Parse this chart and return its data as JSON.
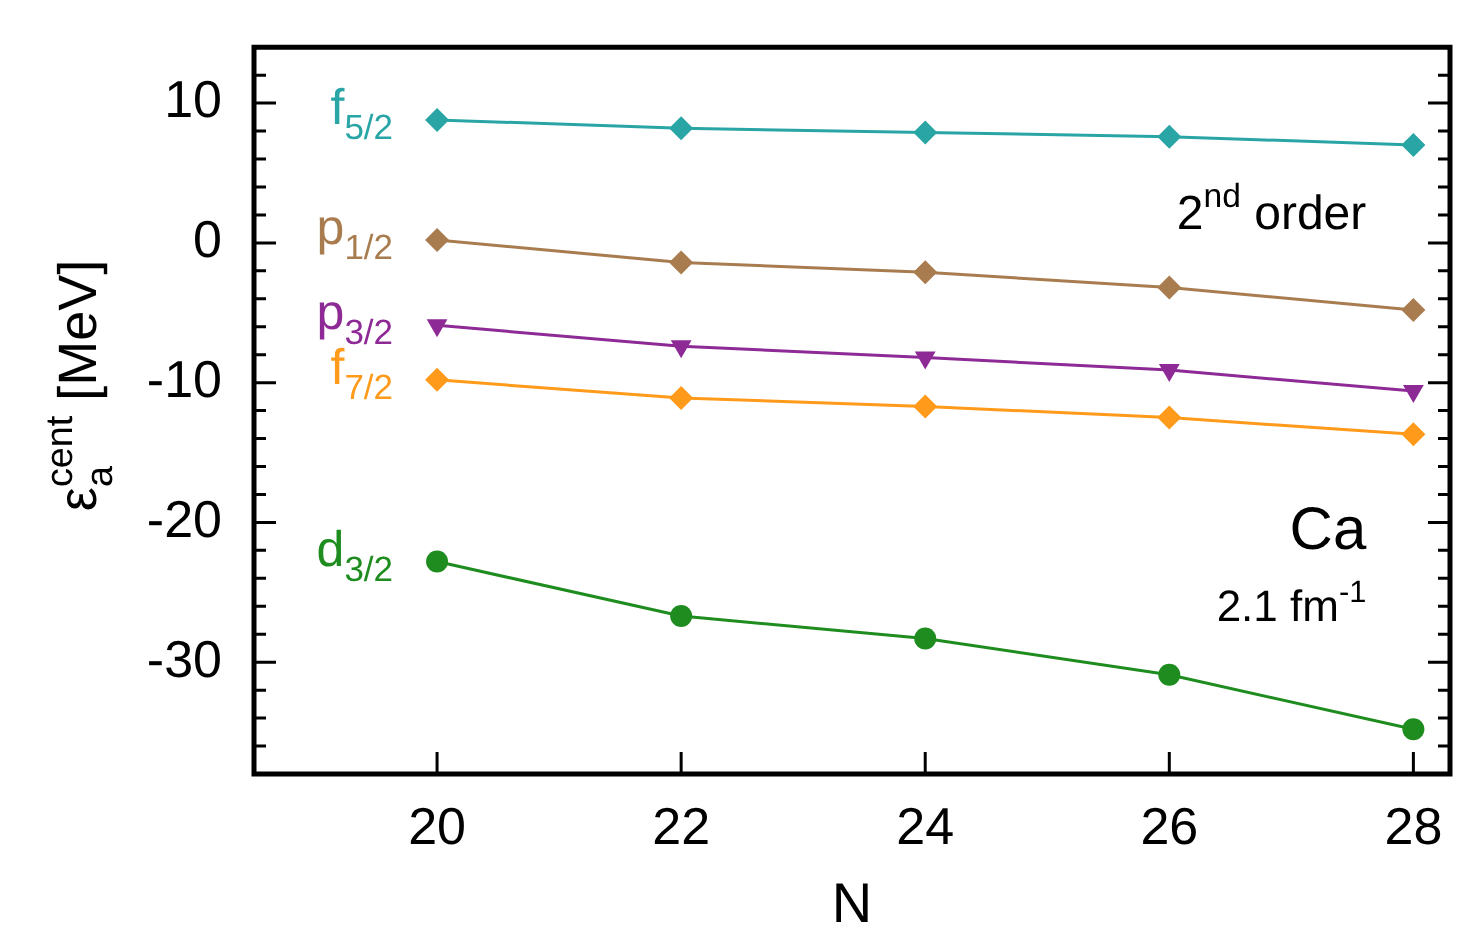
{
  "chart_data": {
    "type": "line",
    "xlabel": "N",
    "ylabel": "ε$_{a}$$^{cent}$ [MeV]",
    "x": [
      20,
      22,
      24,
      26,
      28
    ],
    "series": [
      {
        "name": "f$_{5/2}$",
        "color": "#2aa5a5",
        "marker": "diamond",
        "values": [
          8.8,
          8.2,
          7.9,
          7.6,
          7.0
        ]
      },
      {
        "name": "p$_{1/2}$",
        "color": "#a87c4f",
        "marker": "diamond",
        "values": [
          0.2,
          -1.4,
          -2.1,
          -3.2,
          -4.8
        ]
      },
      {
        "name": "p$_{3/2}$",
        "color": "#8e2a96",
        "marker": "triangle",
        "values": [
          -5.9,
          -7.4,
          -8.2,
          -9.1,
          -10.6
        ]
      },
      {
        "name": "f$_{7/2}$",
        "color": "#ff9a1a",
        "marker": "diamond",
        "values": [
          -9.8,
          -11.1,
          -11.7,
          -12.5,
          -13.7
        ]
      },
      {
        "name": "d$_{3/2}$",
        "color": "#1e8c1e",
        "marker": "circle",
        "values": [
          -22.8,
          -26.7,
          -28.3,
          -30.9,
          -34.8
        ]
      }
    ],
    "xlim": [
      18.5,
      28.3
    ],
    "xticks": [
      20,
      22,
      24,
      26,
      28
    ],
    "ylim": [
      -38,
      14
    ],
    "yticks": [
      {
        "value": -36,
        "label": null
      },
      {
        "value": -34,
        "label": null
      },
      {
        "value": -32,
        "label": null
      },
      -30,
      {
        "value": -28,
        "label": null
      },
      {
        "value": -26,
        "label": null
      },
      {
        "value": -24,
        "label": null
      },
      {
        "value": -22,
        "label": null
      },
      -20,
      {
        "value": -18,
        "label": null
      },
      {
        "value": -16,
        "label": null
      },
      {
        "value": -14,
        "label": null
      },
      {
        "value": -12,
        "label": null
      },
      -10,
      {
        "value": -8,
        "label": null
      },
      {
        "value": -6,
        "label": null
      },
      {
        "value": -4,
        "label": null
      },
      {
        "value": -2,
        "label": null
      },
      0,
      {
        "value": 2,
        "label": null
      },
      {
        "value": 4,
        "label": null
      },
      {
        "value": 6,
        "label": null
      },
      {
        "value": 8,
        "label": null
      },
      10,
      {
        "value": 12,
        "label": null
      }
    ],
    "annotations": [
      "2$^{nd}$ order",
      "Ca",
      "2.1 fm$^{-1}$"
    ],
    "grid": false,
    "legend": false,
    "line_style": "solid"
  }
}
